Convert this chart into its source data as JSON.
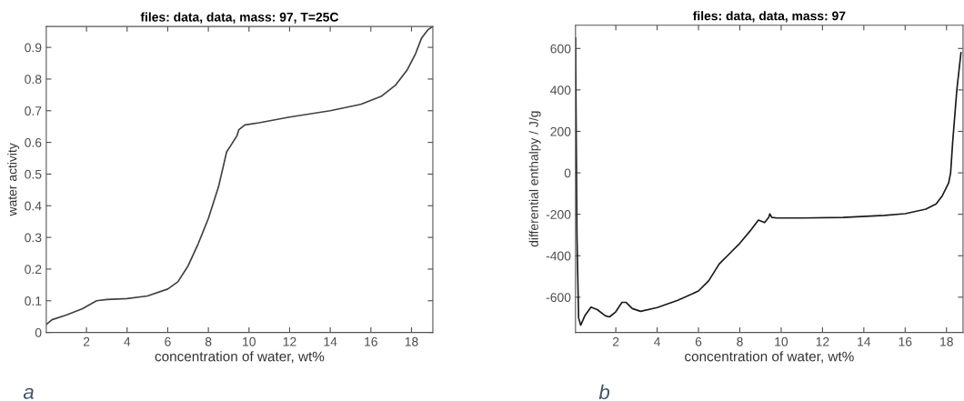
{
  "chart_data": [
    {
      "type": "line",
      "title": "files: data, data, mass: 97, T=25C",
      "xlabel": "concentration of water, wt%",
      "ylabel": "water activity",
      "annotations": [
        "a"
      ],
      "grid": false,
      "xlim": [
        0.02,
        19.05
      ],
      "ylim": [
        0,
        0.966
      ],
      "xticks": [
        2,
        4,
        6,
        8,
        10,
        12,
        14,
        16,
        18
      ],
      "yticks": [
        0,
        0.1,
        0.2,
        0.3,
        0.4,
        0.5,
        0.6,
        0.7,
        0.8,
        0.9
      ],
      "series": [
        {
          "color": "#404040",
          "x": [
            0.02,
            0.3,
            1,
            1.8,
            2.5,
            3,
            4,
            5,
            6,
            6.5,
            7,
            7.5,
            8,
            8.5,
            8.9,
            9.1,
            9.4,
            9.5,
            9.8,
            10.5,
            12,
            14,
            15.5,
            16.5,
            17.2,
            17.8,
            18.2,
            18.5,
            18.8,
            19.05
          ],
          "values": [
            0.025,
            0.04,
            0.055,
            0.075,
            0.1,
            0.104,
            0.107,
            0.115,
            0.137,
            0.16,
            0.21,
            0.28,
            0.36,
            0.46,
            0.57,
            0.59,
            0.62,
            0.64,
            0.655,
            0.662,
            0.68,
            0.7,
            0.72,
            0.745,
            0.78,
            0.83,
            0.88,
            0.93,
            0.955,
            0.966
          ]
        }
      ]
    },
    {
      "type": "line",
      "title": "files: data, data, mass: 97",
      "xlabel": "concentration of water, wt%",
      "ylabel": "differential enthalpy / J/g",
      "annotations": [
        "b"
      ],
      "grid": false,
      "xlim": [
        0.05,
        18.8
      ],
      "ylim": [
        -770,
        712
      ],
      "xticks": [
        2,
        4,
        6,
        8,
        10,
        12,
        14,
        16,
        18
      ],
      "yticks": [
        -600,
        -400,
        -200,
        0,
        200,
        400,
        600
      ],
      "series": [
        {
          "color": "#1a1a1a",
          "x": [
            0.05,
            0.12,
            0.2,
            0.3,
            0.5,
            0.8,
            1.1,
            1.5,
            1.7,
            2.0,
            2.3,
            2.5,
            2.8,
            3.2,
            4,
            5,
            6,
            6.5,
            7,
            7.5,
            8,
            8.5,
            8.9,
            9.2,
            9.4,
            9.45,
            9.55,
            9.8,
            11,
            13,
            15,
            16,
            17,
            17.5,
            17.8,
            18.1,
            18.2,
            18.3,
            18.5,
            18.7
          ],
          "values": [
            650,
            -300,
            -700,
            -735,
            -690,
            -648,
            -660,
            -690,
            -695,
            -670,
            -625,
            -625,
            -655,
            -668,
            -650,
            -615,
            -570,
            -520,
            -440,
            -390,
            -340,
            -280,
            -228,
            -240,
            -215,
            -198,
            -215,
            -218,
            -218,
            -215,
            -205,
            -197,
            -175,
            -150,
            -110,
            -50,
            0,
            150,
            400,
            580
          ]
        }
      ]
    }
  ]
}
